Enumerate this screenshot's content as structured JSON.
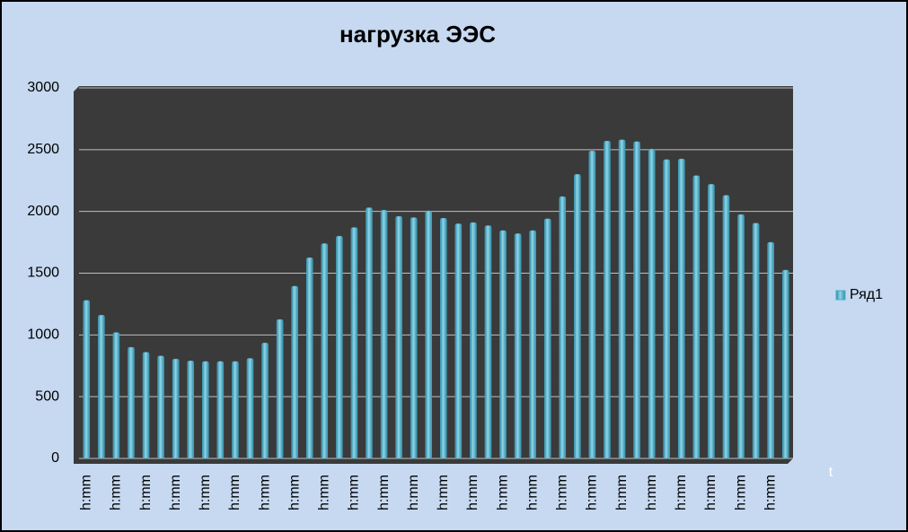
{
  "chart_data": {
    "type": "bar",
    "title": "нагрузка ЭЭС",
    "x_label": "t",
    "categories": [
      "h:mm",
      null,
      "h:mm",
      null,
      "h:mm",
      null,
      "h:mm",
      null,
      "h:mm",
      null,
      "h:mm",
      null,
      "h:mm",
      null,
      "h:mm",
      null,
      "h:mm",
      null,
      "h:mm",
      null,
      "h:mm",
      null,
      "h:mm",
      null,
      "h:mm",
      null,
      "h:mm",
      null,
      "h:mm",
      null,
      "h:mm",
      null,
      "h:mm",
      null,
      "h:mm",
      null,
      "h:mm",
      null,
      "h:mm",
      null,
      "h:mm",
      null,
      "h:mm",
      null,
      "h:mm",
      null,
      "h:mm",
      null
    ],
    "series": [
      {
        "name": "Ряд1",
        "color": "#4bacc6",
        "values": [
          1280,
          1160,
          1020,
          900,
          860,
          830,
          805,
          790,
          785,
          785,
          785,
          810,
          935,
          1125,
          1395,
          1625,
          1740,
          1800,
          1870,
          2030,
          2010,
          1960,
          1950,
          2005,
          1945,
          1900,
          1910,
          1885,
          1845,
          1820,
          1845,
          1940,
          2120,
          2300,
          2490,
          2570,
          2580,
          2565,
          2505,
          2420,
          2425,
          2290,
          2220,
          2130,
          1975,
          1905,
          1750,
          1525
        ]
      }
    ],
    "ylim": [
      0,
      3000
    ],
    "yticks": [
      0,
      500,
      1000,
      1500,
      2000,
      2500,
      3000
    ],
    "grid": true,
    "legend": "right"
  }
}
